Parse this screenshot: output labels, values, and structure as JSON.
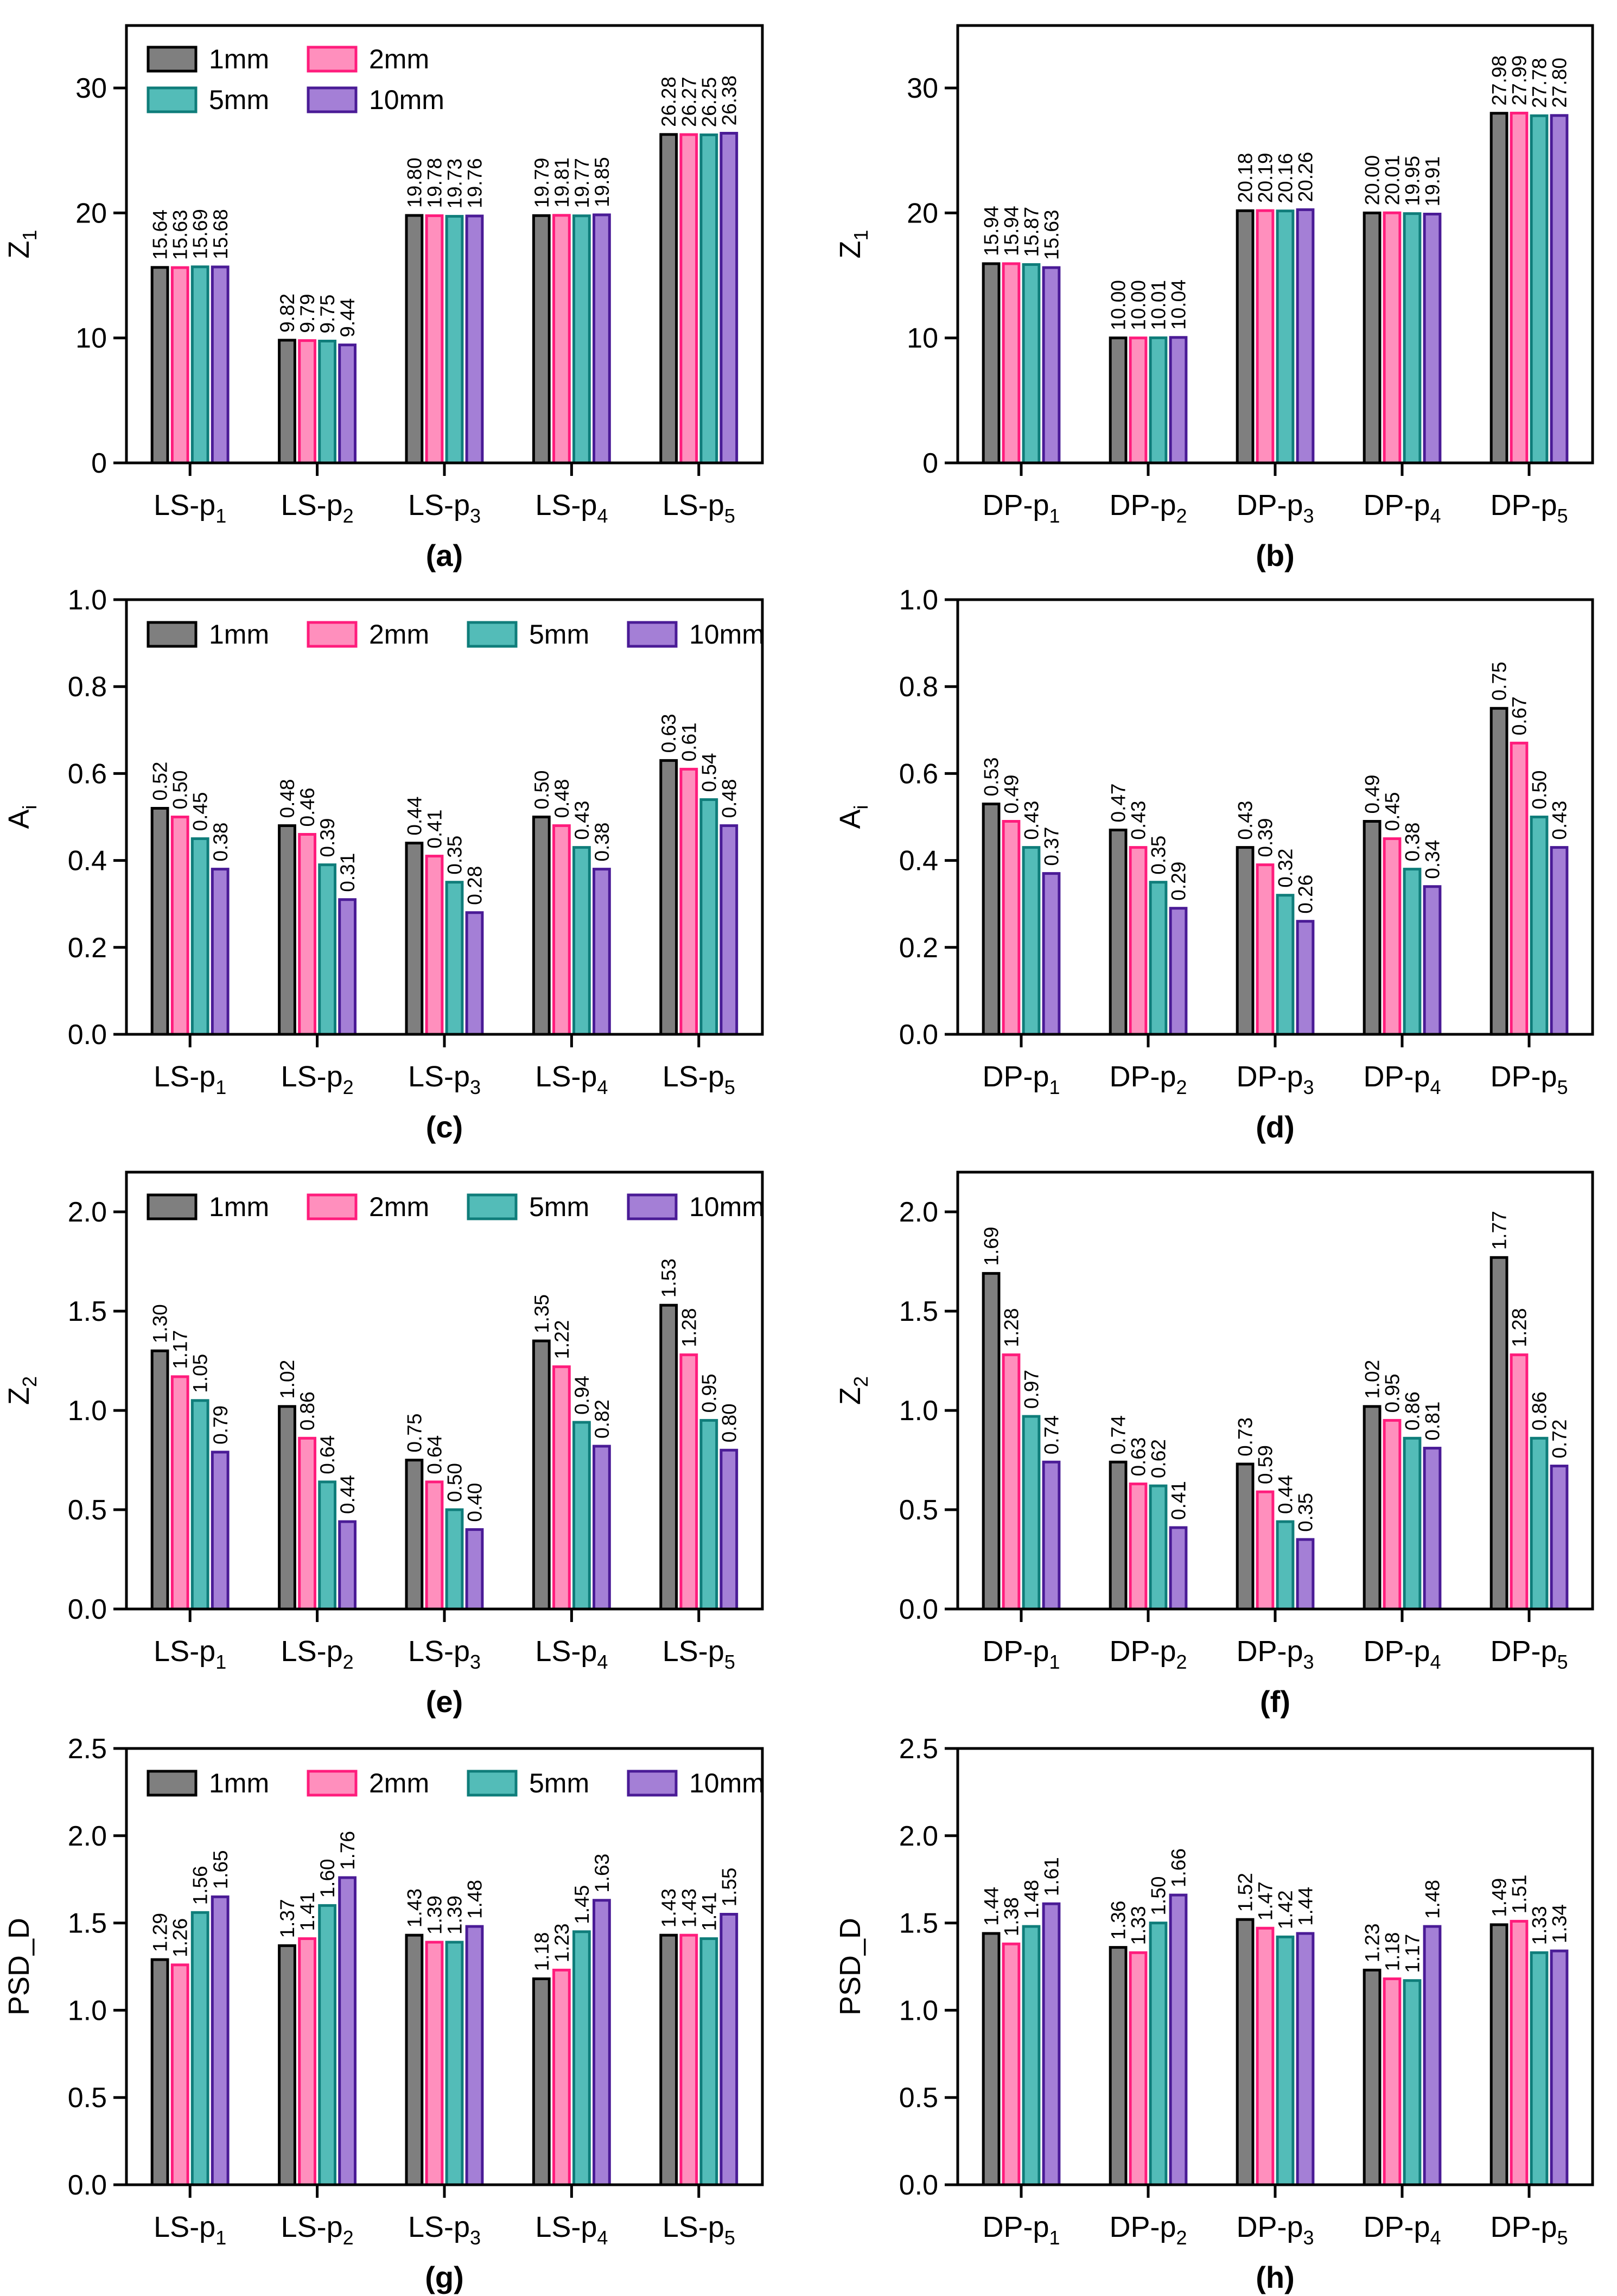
{
  "figure": {
    "series_styles": [
      {
        "name": "1mm",
        "fill": "#7f7f7f",
        "stroke": "#000000"
      },
      {
        "name": "2mm",
        "fill": "#ff8fbd",
        "stroke": "#ff1c7c"
      },
      {
        "name": "5mm",
        "fill": "#53bcb8",
        "stroke": "#0f7d7a"
      },
      {
        "name": "10mm",
        "fill": "#a47fd6",
        "stroke": "#4a1b96"
      }
    ]
  },
  "chart_data": [
    {
      "panel": "(a)",
      "type": "bar",
      "ylabel": "Z",
      "ylabel_sub": "1",
      "group_prefix": "LS-p",
      "categories": [
        "1",
        "2",
        "3",
        "4",
        "5"
      ],
      "ylim": [
        0,
        35
      ],
      "yticks": [
        "0",
        "10",
        "20",
        "30"
      ],
      "ytick_values": [
        0,
        10,
        20,
        30
      ],
      "legend_layout": "2x2",
      "legend_position": "top-left",
      "series": [
        {
          "name": "1mm",
          "values": [
            15.64,
            9.82,
            19.8,
            19.79,
            26.28
          ],
          "labels": [
            "15.64",
            "9.82",
            "19.80",
            "19.79",
            "26.28"
          ]
        },
        {
          "name": "2mm",
          "values": [
            15.63,
            9.79,
            19.78,
            19.81,
            26.27
          ],
          "labels": [
            "15.63",
            "9.79",
            "19.78",
            "19.81",
            "26.27"
          ]
        },
        {
          "name": "5mm",
          "values": [
            15.69,
            9.75,
            19.73,
            19.77,
            26.25
          ],
          "labels": [
            "15.69",
            "9.75",
            "19.73",
            "19.77",
            "26.25"
          ]
        },
        {
          "name": "10mm",
          "values": [
            15.68,
            9.44,
            19.76,
            19.85,
            26.38
          ],
          "labels": [
            "15.68",
            "9.44",
            "19.76",
            "19.85",
            "26.38"
          ]
        }
      ]
    },
    {
      "panel": "(b)",
      "type": "bar",
      "ylabel": "Z",
      "ylabel_sub": "1",
      "group_prefix": "DP-p",
      "categories": [
        "1",
        "2",
        "3",
        "4",
        "5"
      ],
      "ylim": [
        0,
        35
      ],
      "yticks": [
        "0",
        "10",
        "20",
        "30"
      ],
      "ytick_values": [
        0,
        10,
        20,
        30
      ],
      "legend_layout": "none",
      "series": [
        {
          "name": "1mm",
          "values": [
            15.94,
            10.0,
            20.18,
            20.0,
            27.98
          ],
          "labels": [
            "15.94",
            "10.00",
            "20.18",
            "20.00",
            "27.98"
          ]
        },
        {
          "name": "2mm",
          "values": [
            15.94,
            10.0,
            20.19,
            20.01,
            27.99
          ],
          "labels": [
            "15.94",
            "10.00",
            "20.19",
            "20.01",
            "27.99"
          ]
        },
        {
          "name": "5mm",
          "values": [
            15.87,
            10.01,
            20.16,
            19.95,
            27.78
          ],
          "labels": [
            "15.87",
            "10.01",
            "20.16",
            "19.95",
            "27.78"
          ]
        },
        {
          "name": "10mm",
          "values": [
            15.63,
            10.04,
            20.26,
            19.91,
            27.8
          ],
          "labels": [
            "15.63",
            "10.04",
            "20.26",
            "19.91",
            "27.80"
          ]
        }
      ]
    },
    {
      "panel": "(c)",
      "type": "bar",
      "ylabel": "A",
      "ylabel_sub": "i",
      "group_prefix": "LS-p",
      "categories": [
        "1",
        "2",
        "3",
        "4",
        "5"
      ],
      "ylim": [
        0,
        1.0
      ],
      "yticks": [
        "0.0",
        "0.2",
        "0.4",
        "0.6",
        "0.8",
        "1.0"
      ],
      "ytick_values": [
        0,
        0.2,
        0.4,
        0.6,
        0.8,
        1.0
      ],
      "legend_layout": "1x4",
      "legend_position": "top",
      "series": [
        {
          "name": "1mm",
          "values": [
            0.52,
            0.48,
            0.44,
            0.5,
            0.63
          ],
          "labels": [
            "0.52",
            "0.48",
            "0.44",
            "0.50",
            "0.63"
          ]
        },
        {
          "name": "2mm",
          "values": [
            0.5,
            0.46,
            0.41,
            0.48,
            0.61
          ],
          "labels": [
            "0.50",
            "0.46",
            "0.41",
            "0.48",
            "0.61"
          ]
        },
        {
          "name": "5mm",
          "values": [
            0.45,
            0.39,
            0.35,
            0.43,
            0.54
          ],
          "labels": [
            "0.45",
            "0.39",
            "0.35",
            "0.43",
            "0.54"
          ]
        },
        {
          "name": "10mm",
          "values": [
            0.38,
            0.31,
            0.28,
            0.38,
            0.48
          ],
          "labels": [
            "0.38",
            "0.31",
            "0.28",
            "0.38",
            "0.48"
          ]
        }
      ]
    },
    {
      "panel": "(d)",
      "type": "bar",
      "ylabel": "A",
      "ylabel_sub": "i",
      "group_prefix": "DP-p",
      "categories": [
        "1",
        "2",
        "3",
        "4",
        "5"
      ],
      "ylim": [
        0,
        1.0
      ],
      "yticks": [
        "0.0",
        "0.2",
        "0.4",
        "0.6",
        "0.8",
        "1.0"
      ],
      "ytick_values": [
        0,
        0.2,
        0.4,
        0.6,
        0.8,
        1.0
      ],
      "legend_layout": "none",
      "series": [
        {
          "name": "1mm",
          "values": [
            0.53,
            0.47,
            0.43,
            0.49,
            0.75
          ],
          "labels": [
            "0.53",
            "0.47",
            "0.43",
            "0.49",
            "0.75"
          ]
        },
        {
          "name": "2mm",
          "values": [
            0.49,
            0.43,
            0.39,
            0.45,
            0.67
          ],
          "labels": [
            "0.49",
            "0.43",
            "0.39",
            "0.45",
            "0.67"
          ]
        },
        {
          "name": "5mm",
          "values": [
            0.43,
            0.35,
            0.32,
            0.38,
            0.5
          ],
          "labels": [
            "0.43",
            "0.35",
            "0.32",
            "0.38",
            "0.50"
          ]
        },
        {
          "name": "10mm",
          "values": [
            0.37,
            0.29,
            0.26,
            0.34,
            0.43
          ],
          "labels": [
            "0.37",
            "0.29",
            "0.26",
            "0.34",
            "0.43"
          ]
        }
      ]
    },
    {
      "panel": "(e)",
      "type": "bar",
      "ylabel": "Z",
      "ylabel_sub": "2",
      "group_prefix": "LS-p",
      "categories": [
        "1",
        "2",
        "3",
        "4",
        "5"
      ],
      "ylim": [
        0,
        2.2
      ],
      "yticks": [
        "0.0",
        "0.5",
        "1.0",
        "1.5",
        "2.0"
      ],
      "ytick_values": [
        0,
        0.5,
        1.0,
        1.5,
        2.0
      ],
      "legend_layout": "1x4",
      "legend_position": "top",
      "series": [
        {
          "name": "1mm",
          "values": [
            1.3,
            1.02,
            0.75,
            1.35,
            1.53
          ],
          "labels": [
            "1.30",
            "1.02",
            "0.75",
            "1.35",
            "1.53"
          ]
        },
        {
          "name": "2mm",
          "values": [
            1.17,
            0.86,
            0.64,
            1.22,
            1.28
          ],
          "labels": [
            "1.17",
            "0.86",
            "0.64",
            "1.22",
            "1.28"
          ]
        },
        {
          "name": "5mm",
          "values": [
            1.05,
            0.64,
            0.5,
            0.94,
            0.95
          ],
          "labels": [
            "1.05",
            "0.64",
            "0.50",
            "0.94",
            "0.95"
          ]
        },
        {
          "name": "10mm",
          "values": [
            0.79,
            0.44,
            0.4,
            0.82,
            0.8
          ],
          "labels": [
            "0.79",
            "0.44",
            "0.40",
            "0.82",
            "0.80"
          ]
        }
      ]
    },
    {
      "panel": "(f)",
      "type": "bar",
      "ylabel": "Z",
      "ylabel_sub": "2",
      "group_prefix": "DP-p",
      "categories": [
        "1",
        "2",
        "3",
        "4",
        "5"
      ],
      "ylim": [
        0,
        2.2
      ],
      "yticks": [
        "0.0",
        "0.5",
        "1.0",
        "1.5",
        "2.0"
      ],
      "ytick_values": [
        0,
        0.5,
        1.0,
        1.5,
        2.0
      ],
      "legend_layout": "none",
      "series": [
        {
          "name": "1mm",
          "values": [
            1.69,
            0.74,
            0.73,
            1.02,
            1.77
          ],
          "labels": [
            "1.69",
            "0.74",
            "0.73",
            "1.02",
            "1.77"
          ]
        },
        {
          "name": "2mm",
          "values": [
            1.28,
            0.63,
            0.59,
            0.95,
            1.28
          ],
          "labels": [
            "1.28",
            "0.63",
            "0.59",
            "0.95",
            "1.28"
          ]
        },
        {
          "name": "5mm",
          "values": [
            0.97,
            0.62,
            0.44,
            0.86,
            0.86
          ],
          "labels": [
            "0.97",
            "0.62",
            "0.44",
            "0.86",
            "0.86"
          ]
        },
        {
          "name": "10mm",
          "values": [
            0.74,
            0.41,
            0.35,
            0.81,
            0.72
          ],
          "labels": [
            "0.74",
            "0.41",
            "0.35",
            "0.81",
            "0.72"
          ]
        }
      ]
    },
    {
      "panel": "(g)",
      "type": "bar",
      "ylabel": "PSD_D",
      "ylabel_sub": "",
      "group_prefix": "LS-p",
      "categories": [
        "1",
        "2",
        "3",
        "4",
        "5"
      ],
      "ylim": [
        0,
        2.5
      ],
      "yticks": [
        "0.0",
        "0.5",
        "1.0",
        "1.5",
        "2.0",
        "2.5"
      ],
      "ytick_values": [
        0,
        0.5,
        1.0,
        1.5,
        2.0,
        2.5
      ],
      "legend_layout": "1x4",
      "legend_position": "top",
      "series": [
        {
          "name": "1mm",
          "values": [
            1.29,
            1.37,
            1.43,
            1.18,
            1.43
          ],
          "labels": [
            "1.29",
            "1.37",
            "1.43",
            "1.18",
            "1.43"
          ]
        },
        {
          "name": "2mm",
          "values": [
            1.26,
            1.41,
            1.39,
            1.23,
            1.43
          ],
          "labels": [
            "1.26",
            "1.41",
            "1.39",
            "1.23",
            "1.43"
          ]
        },
        {
          "name": "5mm",
          "values": [
            1.56,
            1.6,
            1.39,
            1.45,
            1.41
          ],
          "labels": [
            "1.56",
            "1.60",
            "1.39",
            "1.45",
            "1.41"
          ]
        },
        {
          "name": "10mm",
          "values": [
            1.65,
            1.76,
            1.48,
            1.63,
            1.55
          ],
          "labels": [
            "1.65",
            "1.76",
            "1.48",
            "1.63",
            "1.55"
          ]
        }
      ]
    },
    {
      "panel": "(h)",
      "type": "bar",
      "ylabel": "PSD_D",
      "ylabel_sub": "",
      "group_prefix": "DP-p",
      "categories": [
        "1",
        "2",
        "3",
        "4",
        "5"
      ],
      "ylim": [
        0,
        2.5
      ],
      "yticks": [
        "0.0",
        "0.5",
        "1.0",
        "1.5",
        "2.0",
        "2.5"
      ],
      "ytick_values": [
        0,
        0.5,
        1.0,
        1.5,
        2.0,
        2.5
      ],
      "legend_layout": "none",
      "series": [
        {
          "name": "1mm",
          "values": [
            1.44,
            1.36,
            1.52,
            1.23,
            1.49
          ],
          "labels": [
            "1.44",
            "1.36",
            "1.52",
            "1.23",
            "1.49"
          ]
        },
        {
          "name": "2mm",
          "values": [
            1.38,
            1.33,
            1.47,
            1.18,
            1.51
          ],
          "labels": [
            "1.38",
            "1.33",
            "1.47",
            "1.18",
            "1.51"
          ]
        },
        {
          "name": "5mm",
          "values": [
            1.48,
            1.5,
            1.42,
            1.17,
            1.33
          ],
          "labels": [
            "1.48",
            "1.50",
            "1.42",
            "1.17",
            "1.33"
          ]
        },
        {
          "name": "10mm",
          "values": [
            1.61,
            1.66,
            1.44,
            1.48,
            1.34
          ],
          "labels": [
            "1.61",
            "1.66",
            "1.44",
            "1.48",
            "1.34"
          ]
        }
      ]
    }
  ]
}
